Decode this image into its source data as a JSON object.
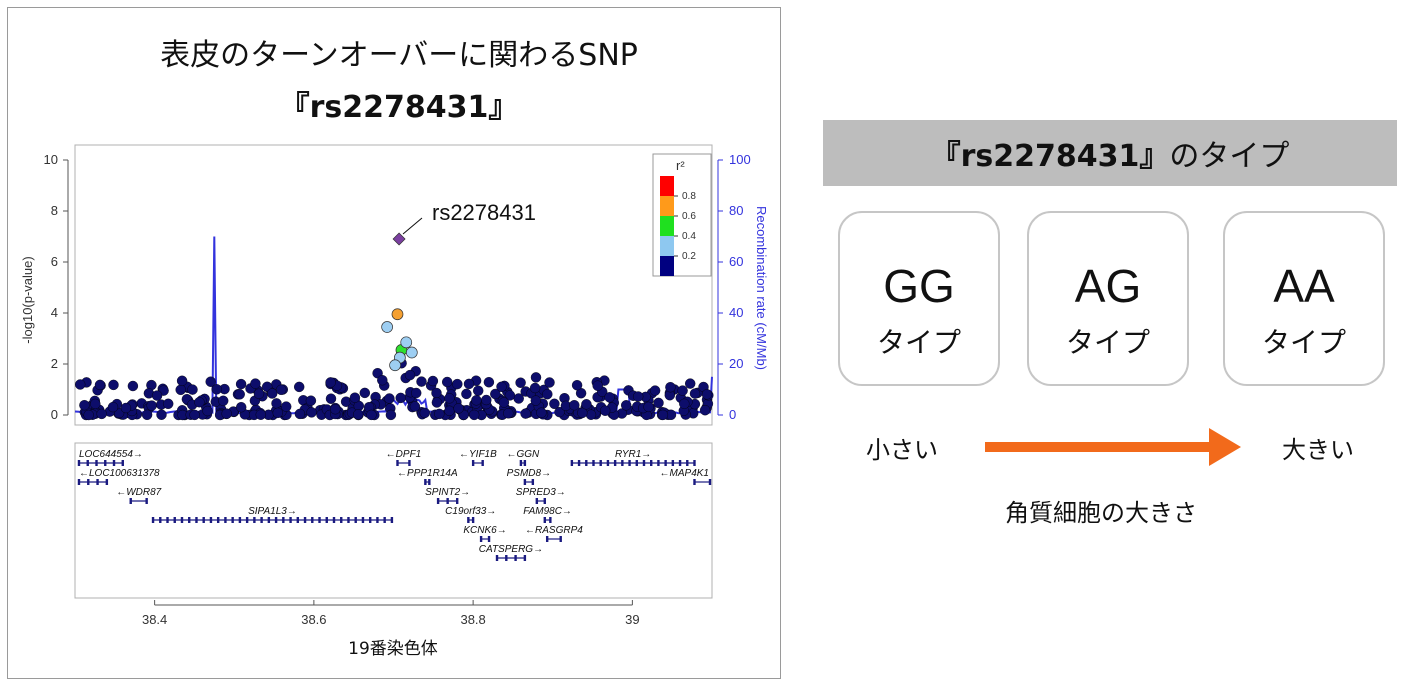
{
  "left_panel": {
    "title_line1": "表皮のターンオーバーに関わるSNP",
    "title_line2": "『rs2278431』",
    "xlabel": "19番染色体"
  },
  "chart_data": {
    "type": "scatter",
    "title": "表皮のターンオーバーに関わるSNP",
    "ylabel": "-log10(p-value)",
    "y2label": "Recombination rate (cM/Mb)",
    "xlabel": "19番染色体",
    "xlim": [
      38.3,
      39.1
    ],
    "ylim": [
      0,
      10
    ],
    "y2lim": [
      0,
      100
    ],
    "x_ticks": [
      38.4,
      38.6,
      38.8,
      39
    ],
    "x_tick_labels": [
      "38.4",
      "38.6",
      "38.8",
      "39"
    ],
    "y_ticks": [
      0,
      2,
      4,
      6,
      8,
      10
    ],
    "y2_ticks": [
      0,
      20,
      40,
      60,
      80,
      100
    ],
    "legend": {
      "title": "r²",
      "labels": [
        "0.8",
        "0.6",
        "0.4",
        "0.2"
      ],
      "colors": [
        "#ff0000",
        "#ff9a1a",
        "#1fe01f",
        "#8ec8f0",
        "#000080"
      ],
      "placement": "top-right"
    },
    "colors": {
      "lead": "#7b3fa0",
      "r2_08": "#f5a031",
      "r2_04": "#2ee02e",
      "r2_02": "#9dcef2",
      "low": "#0d0d6b",
      "recomb": "#3333dd"
    },
    "lead_snp": {
      "label": "rs2278431",
      "x": 38.707,
      "y": 6.9
    },
    "highlighted_points": [
      {
        "x": 38.705,
        "y": 3.95,
        "r2": "0.6-0.8"
      },
      {
        "x": 38.71,
        "y": 2.55,
        "r2": "0.4-0.6"
      },
      {
        "x": 38.692,
        "y": 3.45,
        "r2": "0.2-0.4"
      },
      {
        "x": 38.716,
        "y": 2.85,
        "r2": "0.2-0.4"
      },
      {
        "x": 38.723,
        "y": 2.45,
        "r2": "0.2-0.4"
      },
      {
        "x": 38.708,
        "y": 2.25,
        "r2": "0.2-0.4"
      },
      {
        "x": 38.702,
        "y": 1.95,
        "r2": "0.2-0.4"
      }
    ],
    "recombination_peaks": [
      {
        "x": 38.475,
        "rate": 70
      },
      {
        "x": 38.985,
        "rate": 10
      },
      {
        "x": 39.1,
        "rate": 15
      }
    ],
    "genes": [
      {
        "name": "LOC644554",
        "start": 38.305,
        "end": 38.36,
        "dir": "+",
        "row": 0
      },
      {
        "name": "LOC100631378",
        "start": 38.305,
        "end": 38.34,
        "dir": "-",
        "row": 1
      },
      {
        "name": "WDR87",
        "start": 38.37,
        "end": 38.39,
        "dir": "-",
        "row": 2
      },
      {
        "name": "SIPA1L3",
        "start": 38.398,
        "end": 38.698,
        "dir": "+",
        "row": 3
      },
      {
        "name": "DPF1",
        "start": 38.705,
        "end": 38.72,
        "dir": "-",
        "row": 0
      },
      {
        "name": "PPP1R14A",
        "start": 38.74,
        "end": 38.745,
        "dir": "-",
        "row": 1
      },
      {
        "name": "SPINT2",
        "start": 38.756,
        "end": 38.78,
        "dir": "+",
        "row": 2
      },
      {
        "name": "C19orf33",
        "start": 38.794,
        "end": 38.8,
        "dir": "+",
        "row": 3
      },
      {
        "name": "KCNK6",
        "start": 38.81,
        "end": 38.82,
        "dir": "+",
        "row": 4
      },
      {
        "name": "CATSPERG",
        "start": 38.83,
        "end": 38.865,
        "dir": "+",
        "row": 5
      },
      {
        "name": "YIF1B",
        "start": 38.8,
        "end": 38.812,
        "dir": "-",
        "row": 0
      },
      {
        "name": "GGN",
        "start": 38.86,
        "end": 38.865,
        "dir": "-",
        "row": 0
      },
      {
        "name": "PSMD8",
        "start": 38.865,
        "end": 38.875,
        "dir": "+",
        "row": 1
      },
      {
        "name": "SPRED3",
        "start": 38.88,
        "end": 38.89,
        "dir": "+",
        "row": 2
      },
      {
        "name": "FAM98C",
        "start": 38.89,
        "end": 38.897,
        "dir": "+",
        "row": 3
      },
      {
        "name": "RASGRP4",
        "start": 38.893,
        "end": 38.91,
        "dir": "-",
        "row": 4
      },
      {
        "name": "RYR1",
        "start": 38.924,
        "end": 39.078,
        "dir": "+",
        "row": 0
      },
      {
        "name": "MAP4K1",
        "start": 39.078,
        "end": 39.105,
        "dir": "-",
        "row": 1
      }
    ]
  },
  "right_panel": {
    "header_part1": "『rs2278431』",
    "header_part2": "のタイプ",
    "types": [
      {
        "genotype": "GG",
        "label": "タイプ"
      },
      {
        "genotype": "AG",
        "label": "タイプ"
      },
      {
        "genotype": "AA",
        "label": "タイプ"
      }
    ],
    "arrow_left_label": "小さい",
    "arrow_right_label": "大きい",
    "arrow_caption": "角質細胞の大きさ",
    "arrow_color": "#f26a1b"
  }
}
